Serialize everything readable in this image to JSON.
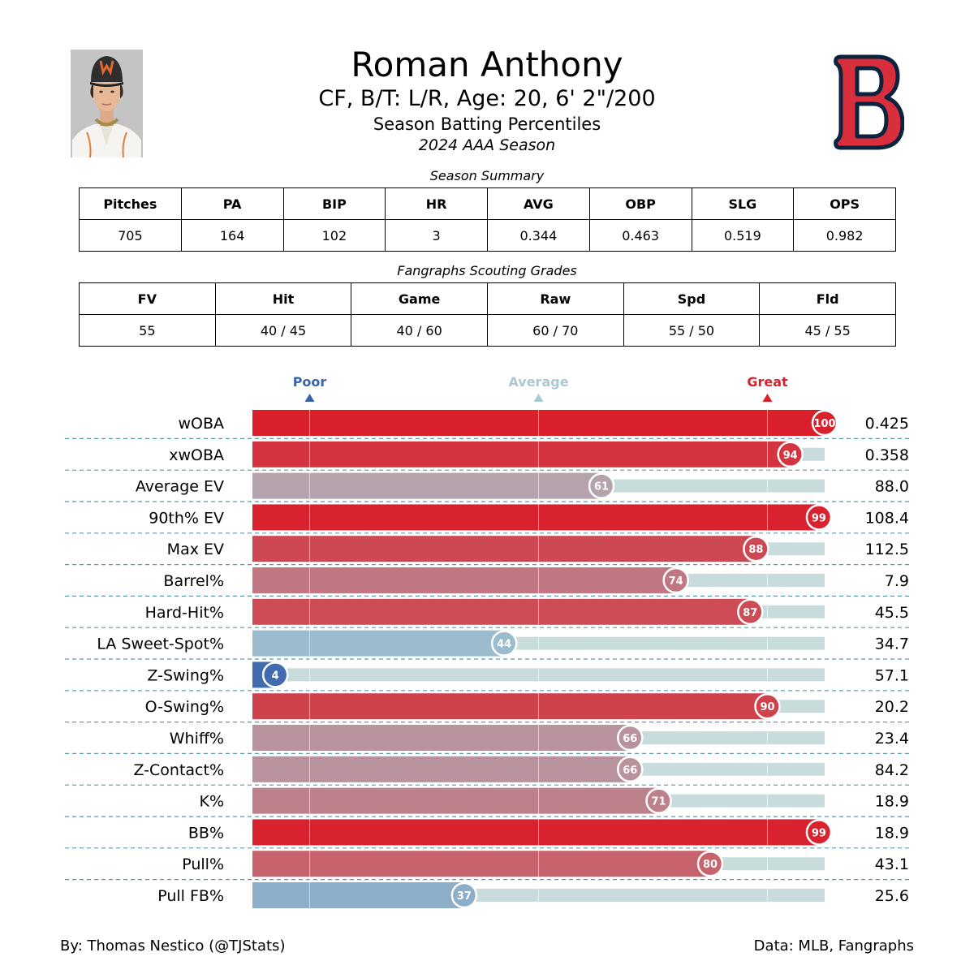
{
  "header": {
    "player_name": "Roman Anthony",
    "bio": "CF, B/T: L/R, Age: 20, 6' 2\"/200",
    "report_title": "Season Batting Percentiles",
    "season": "2024 AAA Season",
    "photo_icon": "player-headshot-icon",
    "logo_icon": "boston-red-sox-logo-icon",
    "logo_colors": {
      "fill": "#d92f3c",
      "outline": "#0c2340"
    }
  },
  "season_summary": {
    "caption": "Season Summary",
    "headers": [
      "Pitches",
      "PA",
      "BIP",
      "HR",
      "AVG",
      "OBP",
      "SLG",
      "OPS"
    ],
    "values": [
      "705",
      "164",
      "102",
      "3",
      "0.344",
      "0.463",
      "0.519",
      "0.982"
    ]
  },
  "scouting_grades": {
    "caption": "Fangraphs Scouting Grades",
    "headers": [
      "FV",
      "Hit",
      "Game",
      "Raw",
      "Spd",
      "Fld"
    ],
    "values": [
      "55",
      "40 / 45",
      "40 / 60",
      "60 / 70",
      "55 / 50",
      "45 / 55"
    ]
  },
  "chart_data": {
    "type": "bar",
    "orientation": "horizontal",
    "xlim": [
      0,
      100
    ],
    "scale_labels": [
      {
        "label": "Poor",
        "value": 10,
        "color": "#3a63ad"
      },
      {
        "label": "Average",
        "value": 50,
        "color": "#a9c8d1"
      },
      {
        "label": "Great",
        "value": 90,
        "color": "#d9202b"
      }
    ],
    "categories": [
      "wOBA",
      "xwOBA",
      "Average EV",
      "90th% EV",
      "Max EV",
      "Barrel%",
      "Hard-Hit%",
      "LA Sweet-Spot%",
      "Z-Swing%",
      "O-Swing%",
      "Whiff%",
      "Z-Contact%",
      "K%",
      "BB%",
      "Pull%",
      "Pull FB%"
    ],
    "percentiles": [
      100,
      94,
      61,
      99,
      88,
      74,
      87,
      44,
      4,
      90,
      66,
      66,
      71,
      99,
      80,
      37
    ],
    "stat_values": [
      "0.425",
      "0.358",
      "88.0",
      "108.4",
      "112.5",
      "7.9",
      "45.5",
      "34.7",
      "57.1",
      "20.2",
      "23.4",
      "84.2",
      "18.9",
      "18.9",
      "43.1",
      "25.6"
    ],
    "colors": {
      "track": "#c9dcdd",
      "separator": "#5b97a7",
      "gridline": "#ffffff",
      "poor": "#3a63ad",
      "average": "#a9c8d1",
      "great": "#d9202b"
    }
  },
  "footer": {
    "credit": "By: Thomas Nestico (@TJStats)",
    "source": "Data: MLB, Fangraphs"
  }
}
